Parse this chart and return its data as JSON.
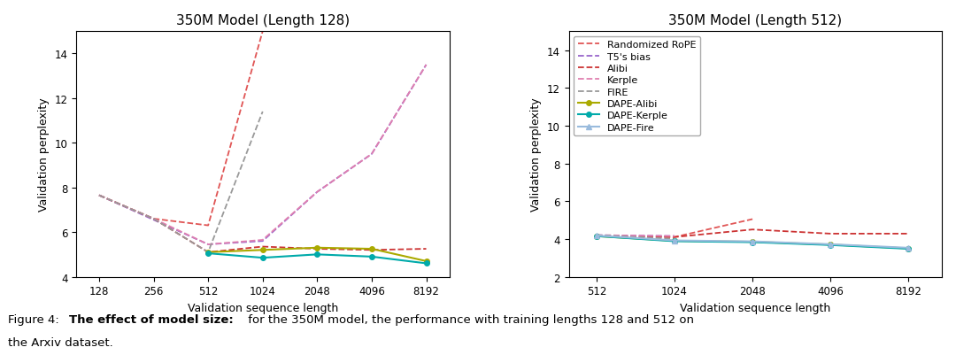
{
  "title1": "350M Model (Length 128)",
  "title2": "350M Model (Length 512)",
  "xlabel": "Validation sequence length",
  "ylabel": "Validation perplexity",
  "plot1": {
    "x": [
      128,
      256,
      512,
      1024,
      2048,
      4096,
      8192
    ],
    "Randomized_RoPE": [
      7.65,
      6.6,
      6.3,
      15.0,
      null,
      null,
      null
    ],
    "T5_bias": [
      7.65,
      6.55,
      5.45,
      5.6,
      7.8,
      9.5,
      13.5
    ],
    "Alibi": [
      7.65,
      6.6,
      5.1,
      5.35,
      5.25,
      5.2,
      5.25
    ],
    "Kerple": [
      7.65,
      6.6,
      5.45,
      5.65,
      7.8,
      9.5,
      13.5
    ],
    "FIRE": [
      7.65,
      6.6,
      5.1,
      11.4,
      null,
      null,
      null
    ],
    "DAPE_Alibi": [
      null,
      null,
      5.1,
      5.2,
      5.3,
      5.25,
      4.7
    ],
    "DAPE_Kerple": [
      null,
      null,
      5.05,
      4.85,
      5.0,
      4.9,
      4.6
    ],
    "DAPE_Fire": [
      null,
      null,
      null,
      null,
      null,
      null,
      null
    ]
  },
  "plot2": {
    "x": [
      512,
      1024,
      2048,
      4096,
      8192
    ],
    "Randomized_RoPE": [
      4.15,
      4.1,
      5.05,
      null,
      null
    ],
    "T5_bias": [
      4.2,
      4.15,
      null,
      null,
      null
    ],
    "Alibi": [
      4.15,
      4.1,
      4.5,
      4.28,
      4.28
    ],
    "Kerple": [
      4.2,
      4.15,
      null,
      null,
      null
    ],
    "FIRE": [
      4.2,
      4.0,
      null,
      null,
      null
    ],
    "DAPE_Alibi": [
      4.15,
      3.9,
      3.85,
      3.7,
      3.5
    ],
    "DAPE_Kerple": [
      4.15,
      3.88,
      3.83,
      3.68,
      3.48
    ],
    "DAPE_Fire": [
      4.18,
      3.92,
      3.87,
      3.72,
      3.53
    ]
  },
  "colors": {
    "Randomized_RoPE": "#e05555",
    "T5_bias": "#9966cc",
    "Alibi": "#cc3333",
    "Kerple": "#e080b0",
    "FIRE": "#999999",
    "DAPE_Alibi": "#aaaa00",
    "DAPE_Kerple": "#00aaaa",
    "DAPE_Fire": "#99bbdd"
  },
  "legend_labels": {
    "Randomized_RoPE": "Randomized RoPE",
    "T5_bias": "T5's bias",
    "Alibi": "Alibi",
    "Kerple": "Kerple",
    "FIRE": "FIRE",
    "DAPE_Alibi": "DAPE-Alibi",
    "DAPE_Kerple": "DAPE-Kerple",
    "DAPE_Fire": "DAPE-Fire"
  },
  "ylim1": [
    4,
    15
  ],
  "ylim2": [
    2,
    15
  ],
  "yticks1": [
    4,
    6,
    8,
    10,
    12,
    14
  ],
  "yticks2": [
    2,
    4,
    6,
    8,
    10,
    12,
    14
  ],
  "figsize": [
    10.8,
    4.02
  ],
  "dpi": 100
}
